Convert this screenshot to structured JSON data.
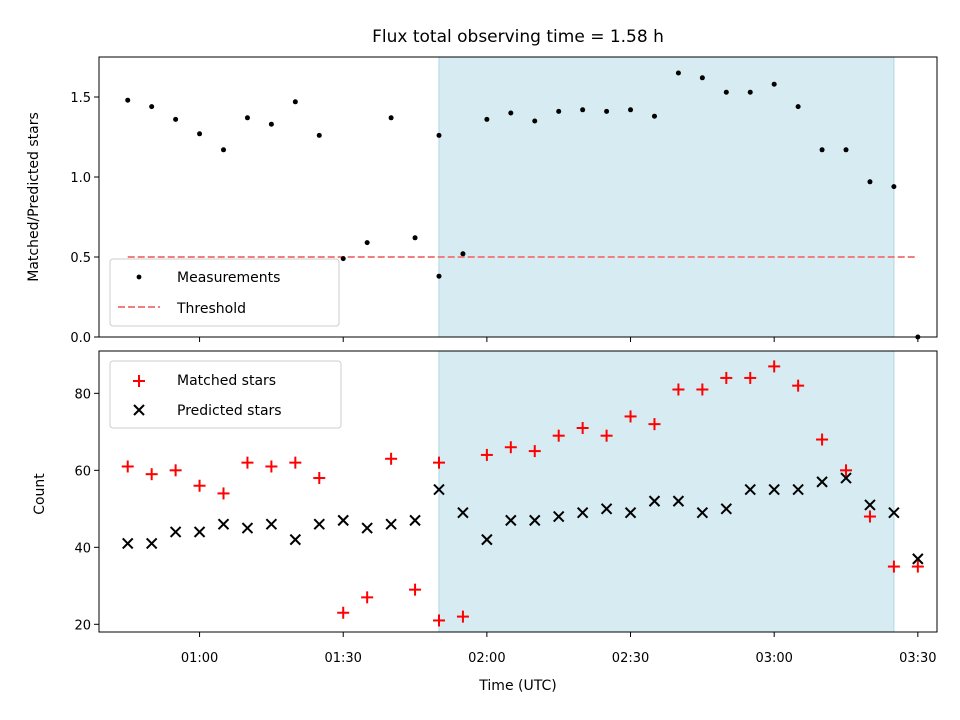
{
  "chart_data": [
    {
      "type": "scatter",
      "title": "Flux total observing time = 1.58 h",
      "ylabel": "Matched/Predicted stars",
      "xlabel": "",
      "ylim": [
        0,
        1.75
      ],
      "xlim": [
        "00:39",
        "03:34"
      ],
      "yticks": [
        "0.0",
        "0.5",
        "1.0",
        "1.5"
      ],
      "shaded_interval": [
        "01:50",
        "03:25"
      ],
      "shade_color": "#add8e6",
      "legend_position": "lower-left",
      "series": [
        {
          "name": "Measurements",
          "marker": "dot",
          "color": "#000000",
          "points": [
            [
              "00:45",
              1.48
            ],
            [
              "00:50",
              1.44
            ],
            [
              "00:55",
              1.36
            ],
            [
              "01:00",
              1.27
            ],
            [
              "01:05",
              1.17
            ],
            [
              "01:10",
              1.37
            ],
            [
              "01:15",
              1.33
            ],
            [
              "01:20",
              1.47
            ],
            [
              "01:25",
              1.26
            ],
            [
              "01:30",
              0.49
            ],
            [
              "01:35",
              0.59
            ],
            [
              "01:40",
              1.37
            ],
            [
              "01:45",
              0.62
            ],
            [
              "01:50",
              0.38
            ],
            [
              "01:50",
              1.26
            ],
            [
              "01:55",
              0.52
            ],
            [
              "02:00",
              1.36
            ],
            [
              "02:05",
              1.4
            ],
            [
              "02:10",
              1.35
            ],
            [
              "02:15",
              1.41
            ],
            [
              "02:20",
              1.42
            ],
            [
              "02:25",
              1.41
            ],
            [
              "02:30",
              1.42
            ],
            [
              "02:35",
              1.38
            ],
            [
              "02:40",
              1.65
            ],
            [
              "02:45",
              1.62
            ],
            [
              "02:50",
              1.53
            ],
            [
              "02:55",
              1.53
            ],
            [
              "03:00",
              1.58
            ],
            [
              "03:05",
              1.44
            ],
            [
              "03:10",
              1.17
            ],
            [
              "03:15",
              1.17
            ],
            [
              "03:20",
              0.97
            ],
            [
              "03:25",
              0.94
            ],
            [
              "03:30",
              0.0
            ]
          ]
        },
        {
          "name": "Threshold",
          "marker": "dashed-line",
          "color": "#f08080",
          "points": [
            [
              "00:45",
              0.5
            ],
            [
              "03:30",
              0.5
            ]
          ]
        }
      ]
    },
    {
      "type": "scatter",
      "title": "",
      "ylabel": "Count",
      "xlabel": "Time (UTC)",
      "ylim": [
        18,
        91
      ],
      "xlim": [
        "00:39",
        "03:34"
      ],
      "yticks": [
        "20",
        "40",
        "60",
        "80"
      ],
      "xticks": [
        "01:00",
        "01:30",
        "02:00",
        "02:30",
        "03:00",
        "03:30"
      ],
      "shaded_interval": [
        "01:50",
        "03:25"
      ],
      "shade_color": "#add8e6",
      "legend_position": "top-left",
      "series": [
        {
          "name": "Matched stars",
          "marker": "plus",
          "color": "#ff0000",
          "points": [
            [
              "00:45",
              61
            ],
            [
              "00:50",
              59
            ],
            [
              "00:55",
              60
            ],
            [
              "01:00",
              56
            ],
            [
              "01:05",
              54
            ],
            [
              "01:10",
              62
            ],
            [
              "01:15",
              61
            ],
            [
              "01:20",
              62
            ],
            [
              "01:25",
              58
            ],
            [
              "01:30",
              23
            ],
            [
              "01:35",
              27
            ],
            [
              "01:40",
              63
            ],
            [
              "01:45",
              29
            ],
            [
              "01:50",
              21
            ],
            [
              "01:50",
              62
            ],
            [
              "01:55",
              22
            ],
            [
              "02:00",
              64
            ],
            [
              "02:05",
              66
            ],
            [
              "02:10",
              65
            ],
            [
              "02:15",
              69
            ],
            [
              "02:20",
              71
            ],
            [
              "02:25",
              69
            ],
            [
              "02:30",
              74
            ],
            [
              "02:35",
              72
            ],
            [
              "02:40",
              81
            ],
            [
              "02:45",
              81
            ],
            [
              "02:50",
              84
            ],
            [
              "02:55",
              84
            ],
            [
              "03:00",
              87
            ],
            [
              "03:05",
              82
            ],
            [
              "03:10",
              68
            ],
            [
              "03:15",
              60
            ],
            [
              "03:20",
              48
            ],
            [
              "03:25",
              35
            ],
            [
              "03:30",
              35
            ]
          ]
        },
        {
          "name": "Predicted stars",
          "marker": "cross",
          "color": "#000000",
          "points": [
            [
              "00:45",
              41
            ],
            [
              "00:50",
              41
            ],
            [
              "00:55",
              44
            ],
            [
              "01:00",
              44
            ],
            [
              "01:05",
              46
            ],
            [
              "01:10",
              45
            ],
            [
              "01:15",
              46
            ],
            [
              "01:20",
              42
            ],
            [
              "01:25",
              46
            ],
            [
              "01:30",
              47
            ],
            [
              "01:35",
              45
            ],
            [
              "01:40",
              46
            ],
            [
              "01:45",
              47
            ],
            [
              "01:50",
              55
            ],
            [
              "01:55",
              49
            ],
            [
              "02:00",
              42
            ],
            [
              "02:05",
              47
            ],
            [
              "02:10",
              47
            ],
            [
              "02:15",
              48
            ],
            [
              "02:20",
              49
            ],
            [
              "02:25",
              50
            ],
            [
              "02:30",
              49
            ],
            [
              "02:35",
              52
            ],
            [
              "02:40",
              52
            ],
            [
              "02:45",
              49
            ],
            [
              "02:50",
              50
            ],
            [
              "02:55",
              55
            ],
            [
              "03:00",
              55
            ],
            [
              "03:05",
              55
            ],
            [
              "03:10",
              57
            ],
            [
              "03:15",
              58
            ],
            [
              "03:20",
              51
            ],
            [
              "03:25",
              49
            ],
            [
              "03:30",
              37
            ]
          ]
        }
      ]
    }
  ]
}
